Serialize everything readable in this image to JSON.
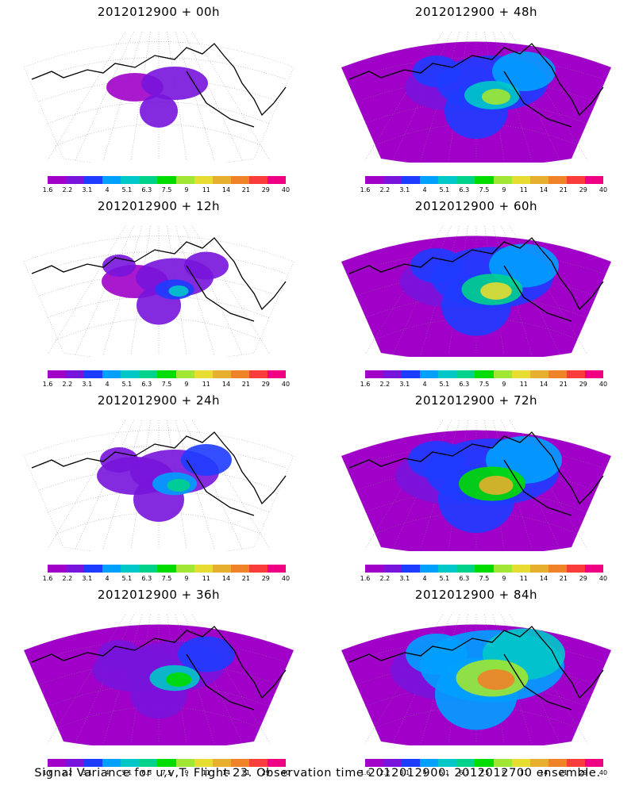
{
  "panels": [
    {
      "title": "2012012900 + 00h",
      "lead": 0
    },
    {
      "title": "2012012900 + 48h",
      "lead": 48
    },
    {
      "title": "2012012900 + 12h",
      "lead": 12
    },
    {
      "title": "2012012900 + 60h",
      "lead": 60
    },
    {
      "title": "2012012900 + 24h",
      "lead": 24
    },
    {
      "title": "2012012900 + 72h",
      "lead": 72
    },
    {
      "title": "2012012900 + 36h",
      "lead": 36
    },
    {
      "title": "2012012900 + 84h",
      "lead": 84
    }
  ],
  "colorbar": {
    "labels": [
      "1.6",
      "2.2",
      "3.1",
      "4",
      "5.1",
      "6.3",
      "7.5",
      "9",
      "11",
      "14",
      "21",
      "29",
      "40"
    ],
    "colors": [
      "#a000c8",
      "#7814dc",
      "#1e3cff",
      "#00a0ff",
      "#00c8c8",
      "#00d28c",
      "#00dc00",
      "#a0e632",
      "#e6dc32",
      "#e6af2d",
      "#f08228",
      "#fa3c3c",
      "#f00082"
    ]
  },
  "footer": "Signal Variance for u,v,T. Flight 23. Observation time 2012012900. 2012012700 ensemble."
}
